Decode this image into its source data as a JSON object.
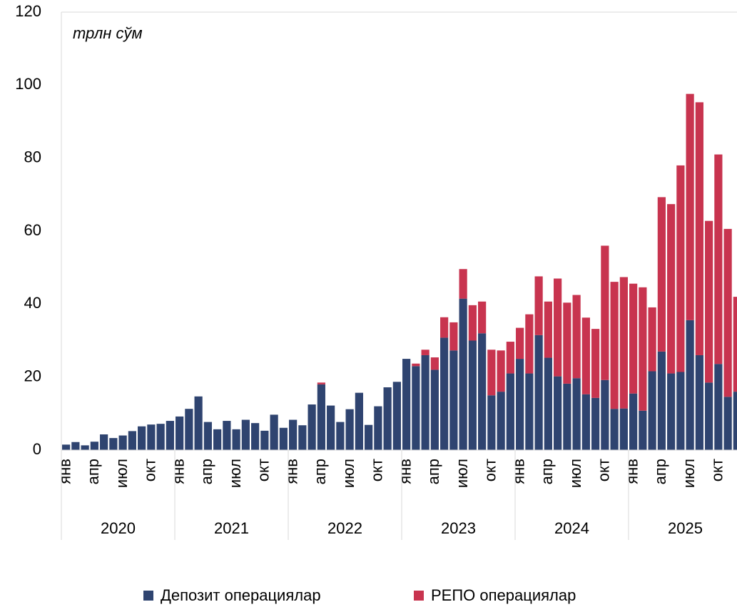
{
  "chart_data": {
    "type": "stacked_bar",
    "annotation": "трлн сўм",
    "categories": [
      "янв",
      null,
      null,
      "апр",
      null,
      null,
      "июл",
      null,
      null,
      "окт",
      null,
      null,
      "янв",
      null,
      null,
      "апр",
      null,
      null,
      "июл",
      null,
      null,
      "окт",
      null,
      null,
      "янв",
      null,
      null,
      "апр",
      null,
      null,
      "июл",
      null,
      null,
      "окт",
      null,
      null,
      "янв",
      null,
      null,
      "апр",
      null,
      null,
      "июл",
      null,
      null,
      "окт",
      null,
      null,
      "янв",
      null,
      null,
      "апр",
      null,
      null,
      "июл",
      null,
      null,
      "окт",
      null,
      null,
      "янв",
      null,
      null,
      "апр",
      null,
      null,
      "июл",
      null,
      null,
      "окт",
      null,
      null
    ],
    "years": [
      "2020",
      "2021",
      "2022",
      "2023",
      "2024",
      "2025"
    ],
    "series": [
      {
        "name": "Депозит операциялар",
        "color": "#2f4470",
        "values": [
          1.5,
          2.2,
          1.3,
          2.3,
          4.3,
          3.3,
          4,
          5.2,
          6.5,
          7,
          7.2,
          8,
          9.2,
          11.3,
          14.7,
          7.7,
          5.7,
          8,
          5.7,
          8.3,
          7.4,
          5.3,
          9.7,
          6.1,
          8.3,
          6.8,
          12.5,
          18,
          12.2,
          7.7,
          11.2,
          15.7,
          6.9,
          12,
          17.2,
          18.7,
          25,
          23,
          26,
          22,
          30.8,
          27.3,
          41.5,
          30,
          32,
          15,
          16,
          21,
          25,
          21,
          31.5,
          25.3,
          20.2,
          18.2,
          19.7,
          15.3,
          14.3,
          19.2,
          11.3,
          11.4,
          15.5,
          10.8,
          21.6,
          27,
          21,
          21.4,
          35.6,
          26,
          18.5,
          23.6,
          14.6,
          16
        ]
      },
      {
        "name": "РЕПО операциялар",
        "color": "#c8344f",
        "values": [
          0,
          0,
          0,
          0,
          0,
          0,
          0,
          0,
          0,
          0,
          0,
          0,
          0,
          0,
          0,
          0,
          0,
          0,
          0,
          0,
          0,
          0,
          0,
          0,
          0,
          0,
          0,
          0.5,
          0,
          0,
          0,
          0,
          0,
          0,
          0,
          0,
          0,
          0.7,
          1.5,
          3.4,
          5.6,
          7.7,
          8.1,
          9.7,
          8.7,
          12.5,
          11.3,
          8.7,
          8.5,
          16.2,
          16.1,
          15.4,
          26.8,
          22.2,
          22.8,
          21,
          18.9,
          36.8,
          34.8,
          36,
          30.1,
          33.8,
          17.5,
          42.3,
          46.4,
          56.6,
          62,
          69.3,
          44.3,
          57.4,
          46,
          26
        ]
      }
    ],
    "ylim": [
      0,
      120
    ],
    "yticks": [
      0,
      20,
      40,
      60,
      80,
      100,
      120
    ],
    "grid": false,
    "legend": "bottom"
  }
}
